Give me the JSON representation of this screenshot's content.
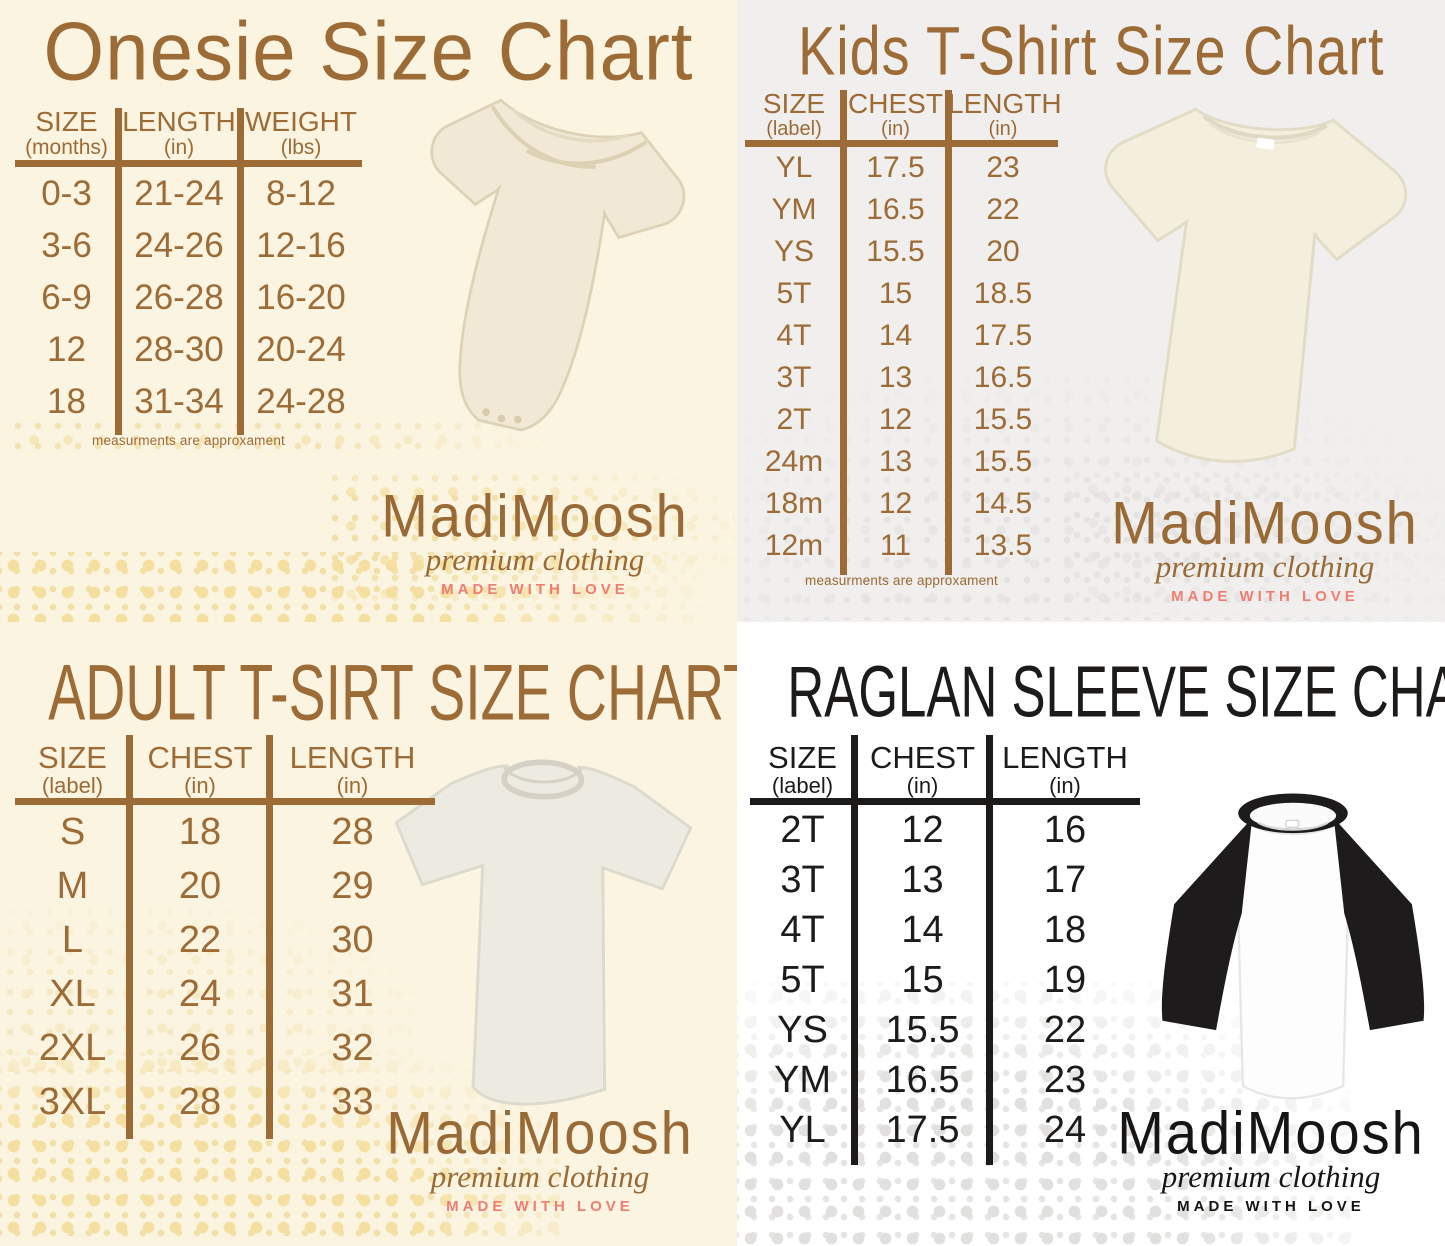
{
  "brand": {
    "name": "MadiMoosh",
    "tagline": "premium clothing",
    "motto": "MADE WITH LOVE"
  },
  "colors": {
    "brown_ink": "#9c6b36",
    "black_ink": "#1d1b1a",
    "cream_background": "#faf4e1",
    "gray_background": "#f0efee",
    "white_background": "#ffffff",
    "salmon_accent": "#ee7e72",
    "yellow_halftone_dot": "#f3e0a8",
    "gray_halftone_dot": "#e4e3e1"
  },
  "chart_data": [
    {
      "type": "table",
      "title": "Onesie Size Chart",
      "columns": [
        {
          "label": "SIZE",
          "unit": "(months)"
        },
        {
          "label": "LENGTH",
          "unit": "(in)"
        },
        {
          "label": "WEIGHT",
          "unit": "(lbs)"
        }
      ],
      "rows": [
        [
          "0-3",
          "21-24",
          "8-12"
        ],
        [
          "3-6",
          "24-26",
          "12-16"
        ],
        [
          "6-9",
          "26-28",
          "16-20"
        ],
        [
          "12",
          "28-30",
          "20-24"
        ],
        [
          "18",
          "31-34",
          "24-28"
        ]
      ],
      "note": "measurments are approxament"
    },
    {
      "type": "table",
      "title": "Kids T-Shirt Size Chart",
      "columns": [
        {
          "label": "SIZE",
          "unit": "(label)"
        },
        {
          "label": "CHEST",
          "unit": "(in)"
        },
        {
          "label": "LENGTH",
          "unit": "(in)"
        }
      ],
      "rows": [
        [
          "YL",
          "17.5",
          "23"
        ],
        [
          "YM",
          "16.5",
          "22"
        ],
        [
          "YS",
          "15.5",
          "20"
        ],
        [
          "5T",
          "15",
          "18.5"
        ],
        [
          "4T",
          "14",
          "17.5"
        ],
        [
          "3T",
          "13",
          "16.5"
        ],
        [
          "2T",
          "12",
          "15.5"
        ],
        [
          "24m",
          "13",
          "15.5"
        ],
        [
          "18m",
          "12",
          "14.5"
        ],
        [
          "12m",
          "11",
          "13.5"
        ]
      ],
      "note": "measurments are approxament"
    },
    {
      "type": "table",
      "title": "ADULT T-SIRT SIZE CHART",
      "columns": [
        {
          "label": "SIZE",
          "unit": "(label)"
        },
        {
          "label": "CHEST",
          "unit": "(in)"
        },
        {
          "label": "LENGTH",
          "unit": "(in)"
        }
      ],
      "rows": [
        [
          "S",
          "18",
          "28"
        ],
        [
          "M",
          "20",
          "29"
        ],
        [
          "L",
          "22",
          "30"
        ],
        [
          "XL",
          "24",
          "31"
        ],
        [
          "2XL",
          "26",
          "32"
        ],
        [
          "3XL",
          "28",
          "33"
        ]
      ]
    },
    {
      "type": "table",
      "title": "RAGLAN SLEEVE SIZE CHART",
      "columns": [
        {
          "label": "SIZE",
          "unit": "(label)"
        },
        {
          "label": "CHEST",
          "unit": "(in)"
        },
        {
          "label": "LENGTH",
          "unit": "(in)"
        }
      ],
      "rows": [
        [
          "2T",
          "12",
          "16"
        ],
        [
          "3T",
          "13",
          "17"
        ],
        [
          "4T",
          "14",
          "18"
        ],
        [
          "5T",
          "15",
          "19"
        ],
        [
          "YS",
          "15.5",
          "22"
        ],
        [
          "YM",
          "16.5",
          "23"
        ],
        [
          "YL",
          "17.5",
          "24"
        ]
      ]
    }
  ]
}
